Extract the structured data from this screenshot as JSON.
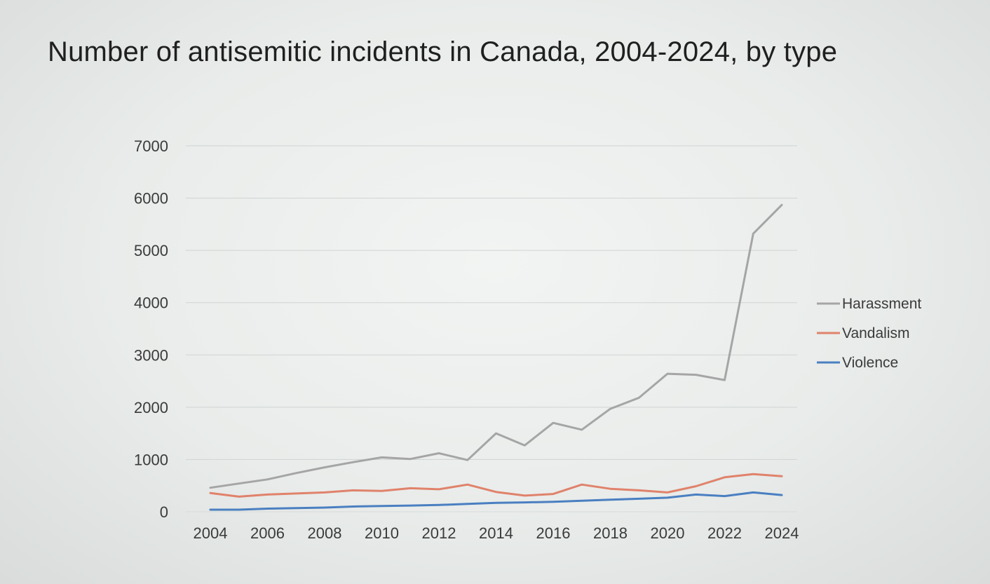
{
  "chart_data": {
    "type": "line",
    "title": "Number of antisemitic incidents in Canada, 2004-2024, by type",
    "xlabel": "",
    "ylabel": "",
    "x": [
      2004,
      2005,
      2006,
      2007,
      2008,
      2009,
      2010,
      2011,
      2012,
      2013,
      2014,
      2015,
      2016,
      2017,
      2018,
      2019,
      2020,
      2021,
      2022,
      2023,
      2024
    ],
    "x_tick_labels": [
      "2004",
      "2006",
      "2008",
      "2010",
      "2012",
      "2014",
      "2016",
      "2018",
      "2020",
      "2022",
      "2024"
    ],
    "y_tick_labels": [
      "0",
      "1000",
      "2000",
      "3000",
      "4000",
      "5000",
      "6000",
      "7000"
    ],
    "ylim": [
      0,
      7000
    ],
    "grid": true,
    "legend_position": "right",
    "series": [
      {
        "name": "Harassment",
        "color": "#a5a5a5",
        "values": [
          460,
          540,
          620,
          740,
          850,
          950,
          1040,
          1010,
          1120,
          990,
          1500,
          1270,
          1700,
          1570,
          1970,
          2180,
          2640,
          2620,
          2520,
          5320,
          5870
        ]
      },
      {
        "name": "Vandalism",
        "color": "#e0826b",
        "values": [
          360,
          290,
          330,
          350,
          370,
          410,
          400,
          450,
          430,
          520,
          380,
          310,
          340,
          520,
          440,
          410,
          370,
          490,
          660,
          720,
          680
        ]
      },
      {
        "name": "Violence",
        "color": "#4a7fc1",
        "values": [
          40,
          40,
          60,
          70,
          80,
          100,
          110,
          120,
          130,
          150,
          170,
          180,
          190,
          210,
          230,
          250,
          270,
          330,
          300,
          370,
          320
        ]
      }
    ]
  }
}
